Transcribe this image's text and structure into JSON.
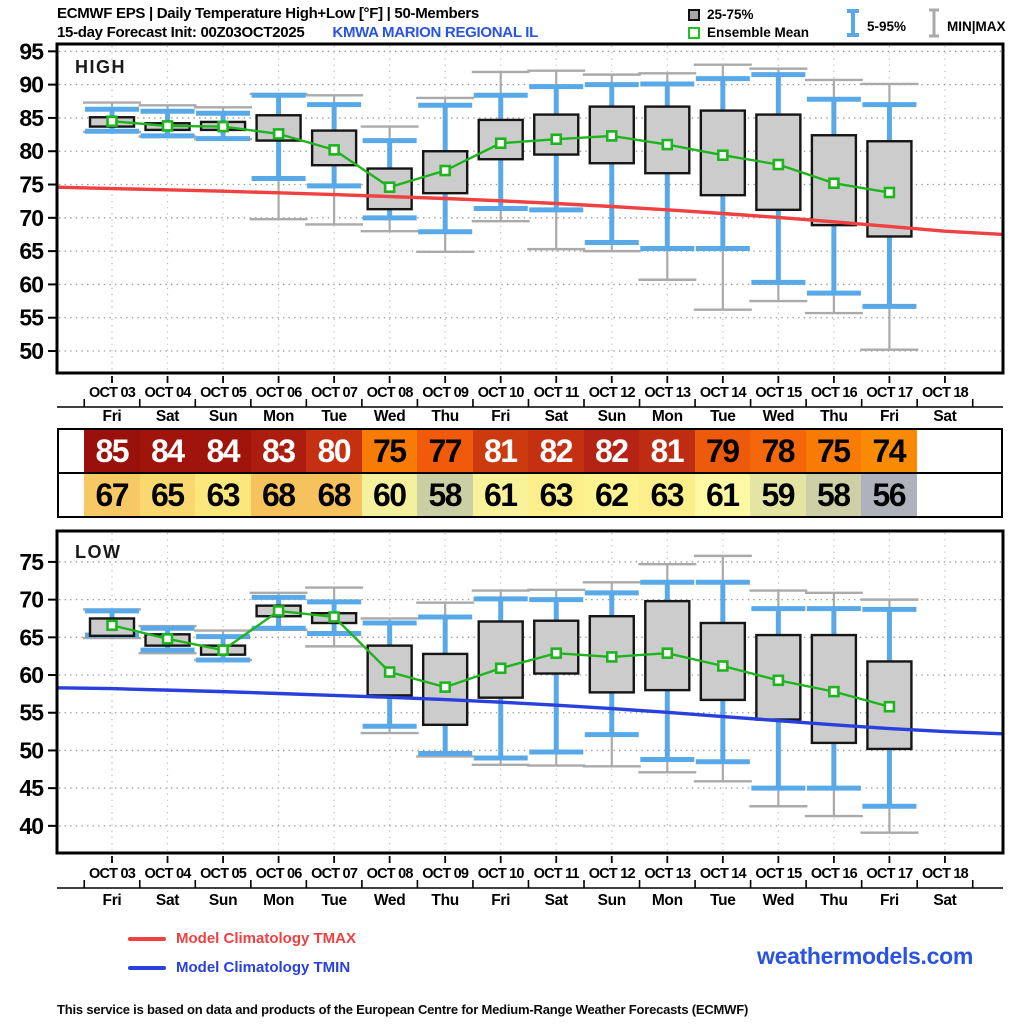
{
  "header": {
    "title": "ECMWF EPS | Daily Temperature High+Low [°F] | 50-Members",
    "subtitle": "15-day Forecast Init: 00Z03OCT2025",
    "station": "KMWA  MARION REGIONAL IL",
    "legend": {
      "box_label": "25-75%",
      "mean_label": "Ensemble Mean",
      "whisker_label": "5-95%",
      "minmax_label": "MIN|MAX"
    }
  },
  "colors": {
    "station_blue": "#2953E3",
    "box_fill": "#cccccc",
    "box_stroke": "#151515",
    "whisker_blue": "#59A9E9",
    "whisker_gray": "#aaaaaa",
    "mean_green": "#1EB41E",
    "tmax_red": "#EF4141",
    "tmin_blue": "#2840DC",
    "grid_gray": "#999999"
  },
  "dates": [
    "OCT 03",
    "OCT 04",
    "OCT 05",
    "OCT 06",
    "OCT 07",
    "OCT 08",
    "OCT 09",
    "OCT 10",
    "OCT 11",
    "OCT 12",
    "OCT 13",
    "OCT 14",
    "OCT 15",
    "OCT 16",
    "OCT 17",
    "OCT 18"
  ],
  "days": [
    "Fri",
    "Sat",
    "Sun",
    "Mon",
    "Tue",
    "Wed",
    "Thu",
    "Fri",
    "Sat",
    "Sun",
    "Mon",
    "Tue",
    "Wed",
    "Thu",
    "Fri",
    "Sat"
  ],
  "table": {
    "high": {
      "values": [
        85,
        84,
        84,
        83,
        80,
        75,
        77,
        81,
        82,
        82,
        81,
        79,
        78,
        75,
        74
      ],
      "colors": [
        "#9A100A",
        "#A1140B",
        "#A1140B",
        "#AD1D0F",
        "#C53010",
        "#F87B06",
        "#F25A0B",
        "#CC3B0F",
        "#C53110",
        "#B42313",
        "#BE2C11",
        "#EE5A0B",
        "#F4670A",
        "#F87B06",
        "#F98A04"
      ],
      "text_colors": [
        "#fff",
        "#fff",
        "#fff",
        "#fff",
        "#fff",
        "#000",
        "#000",
        "#fff",
        "#fff",
        "#fff",
        "#fff",
        "#000",
        "#000",
        "#000",
        "#000"
      ]
    },
    "low": {
      "values": [
        67,
        65,
        63,
        68,
        68,
        60,
        58,
        61,
        63,
        62,
        63,
        61,
        59,
        58,
        56
      ],
      "colors": [
        "#F7C964",
        "#F9D96F",
        "#FBE77C",
        "#F6C25E",
        "#F6C25E",
        "#F3F09E",
        "#CBCFA4",
        "#F8F39B",
        "#FBEE8B",
        "#FCF290",
        "#FBEE8B",
        "#FDF8A3",
        "#E4E5A3",
        "#CDD0A6",
        "#AFB1BD"
      ],
      "text_colors": [
        "#000",
        "#000",
        "#000",
        "#000",
        "#000",
        "#000",
        "#000",
        "#000",
        "#000",
        "#000",
        "#000",
        "#000",
        "#000",
        "#000",
        "#000"
      ]
    }
  },
  "chart_data": [
    {
      "type": "box-whisker",
      "name": "high",
      "title": "HIGH",
      "ylim": [
        46.7,
        96.1
      ],
      "yticks": [
        95,
        90,
        85,
        80,
        75,
        70,
        65,
        60,
        55,
        50
      ],
      "categories": [
        "OCT 03",
        "OCT 04",
        "OCT 05",
        "OCT 06",
        "OCT 07",
        "OCT 08",
        "OCT 09",
        "OCT 10",
        "OCT 11",
        "OCT 12",
        "OCT 13",
        "OCT 14",
        "OCT 15",
        "OCT 16",
        "OCT 17"
      ],
      "mean": [
        84.5,
        83.8,
        83.7,
        82.6,
        80.2,
        74.6,
        77.1,
        81.2,
        81.8,
        82.3,
        81.0,
        79.4,
        78.0,
        75.2,
        73.8
      ],
      "p25": [
        83.7,
        83.2,
        83.2,
        81.6,
        77.9,
        71.3,
        73.7,
        78.8,
        79.5,
        78.2,
        76.7,
        73.4,
        71.2,
        68.9,
        67.2
      ],
      "p75": [
        85.1,
        84.2,
        84.4,
        85.4,
        83.1,
        77.4,
        80.0,
        84.7,
        85.5,
        86.7,
        86.7,
        86.1,
        85.5,
        82.4,
        81.5
      ],
      "p5": [
        83.0,
        82.3,
        81.9,
        75.9,
        74.8,
        70.0,
        67.9,
        71.4,
        71.2,
        66.3,
        65.4,
        65.4,
        60.3,
        58.7,
        56.7
      ],
      "p95": [
        86.3,
        86.0,
        85.7,
        88.4,
        87.0,
        81.6,
        86.9,
        88.4,
        89.7,
        90.0,
        90.1,
        90.9,
        91.5,
        87.8,
        87.0
      ],
      "min": [
        82.9,
        82.2,
        81.8,
        69.8,
        69.0,
        68.0,
        64.9,
        69.5,
        65.3,
        65.0,
        60.7,
        56.2,
        57.5,
        55.7,
        50.2
      ],
      "max": [
        87.3,
        86.9,
        86.6,
        88.6,
        88.4,
        83.7,
        88.0,
        91.9,
        92.1,
        91.5,
        91.7,
        93.0,
        92.4,
        90.7,
        90.1
      ],
      "climatology": {
        "label": "Model Climatology TMAX",
        "edges": [
          74.6,
          67.5
        ],
        "values": [
          74.4,
          74.2,
          74.0,
          73.75,
          73.5,
          73.2,
          72.9,
          72.55,
          72.15,
          71.7,
          71.2,
          70.65,
          70.05,
          69.4,
          68.7,
          68.0
        ]
      }
    },
    {
      "type": "box-whisker",
      "name": "low",
      "title": "LOW",
      "ylim": [
        36.4,
        79.1
      ],
      "yticks": [
        75,
        70,
        65,
        60,
        55,
        50,
        45,
        40
      ],
      "categories": [
        "OCT 03",
        "OCT 04",
        "OCT 05",
        "OCT 06",
        "OCT 07",
        "OCT 08",
        "OCT 09",
        "OCT 10",
        "OCT 11",
        "OCT 12",
        "OCT 13",
        "OCT 14",
        "OCT 15",
        "OCT 16",
        "OCT 17"
      ],
      "mean": [
        66.6,
        64.8,
        63.3,
        68.5,
        67.7,
        60.4,
        58.4,
        60.9,
        62.9,
        62.4,
        62.9,
        61.2,
        59.3,
        57.8,
        55.8
      ],
      "p25": [
        65.2,
        63.9,
        62.7,
        67.8,
        66.9,
        57.3,
        53.4,
        57.0,
        60.2,
        57.7,
        58.0,
        56.7,
        54.1,
        51.0,
        50.2
      ],
      "p75": [
        67.5,
        65.4,
        63.9,
        69.2,
        68.2,
        63.9,
        62.8,
        67.1,
        67.2,
        67.8,
        69.8,
        66.9,
        65.3,
        65.3,
        61.8
      ],
      "p5": [
        65.3,
        63.3,
        62.0,
        66.2,
        65.5,
        53.2,
        49.6,
        49.0,
        49.8,
        52.1,
        48.8,
        48.5,
        45.0,
        45.0,
        42.6
      ],
      "p95": [
        68.5,
        66.2,
        65.1,
        70.3,
        69.7,
        66.9,
        67.7,
        70.1,
        70.0,
        70.9,
        72.3,
        72.3,
        68.8,
        68.8,
        68.7
      ],
      "min": [
        64.9,
        62.9,
        62.0,
        66.0,
        63.8,
        52.3,
        49.2,
        48.1,
        48.0,
        47.9,
        47.1,
        45.9,
        42.6,
        41.3,
        39.1
      ],
      "max": [
        68.7,
        66.5,
        65.9,
        70.9,
        71.6,
        67.5,
        69.6,
        71.2,
        71.3,
        72.3,
        74.7,
        75.8,
        71.2,
        70.9,
        70.0
      ],
      "climatology": {
        "label": "Model Climatology TMIN",
        "edges": [
          58.3,
          52.2
        ],
        "values": [
          58.2,
          58.0,
          57.8,
          57.55,
          57.3,
          57.05,
          56.75,
          56.4,
          56.0,
          55.55,
          55.05,
          54.5,
          53.95,
          53.4,
          52.9,
          52.5
        ]
      }
    }
  ],
  "footer_legend": [
    {
      "label": "Model Climatology TMAX",
      "color": "#EF4141"
    },
    {
      "label": "Model Climatology TMIN",
      "color": "#2840DC"
    }
  ],
  "branding": "weathermodels.com",
  "footer": "This service is based on data and products of the European Centre for Medium-Range Weather Forecasts (ECMWF)"
}
